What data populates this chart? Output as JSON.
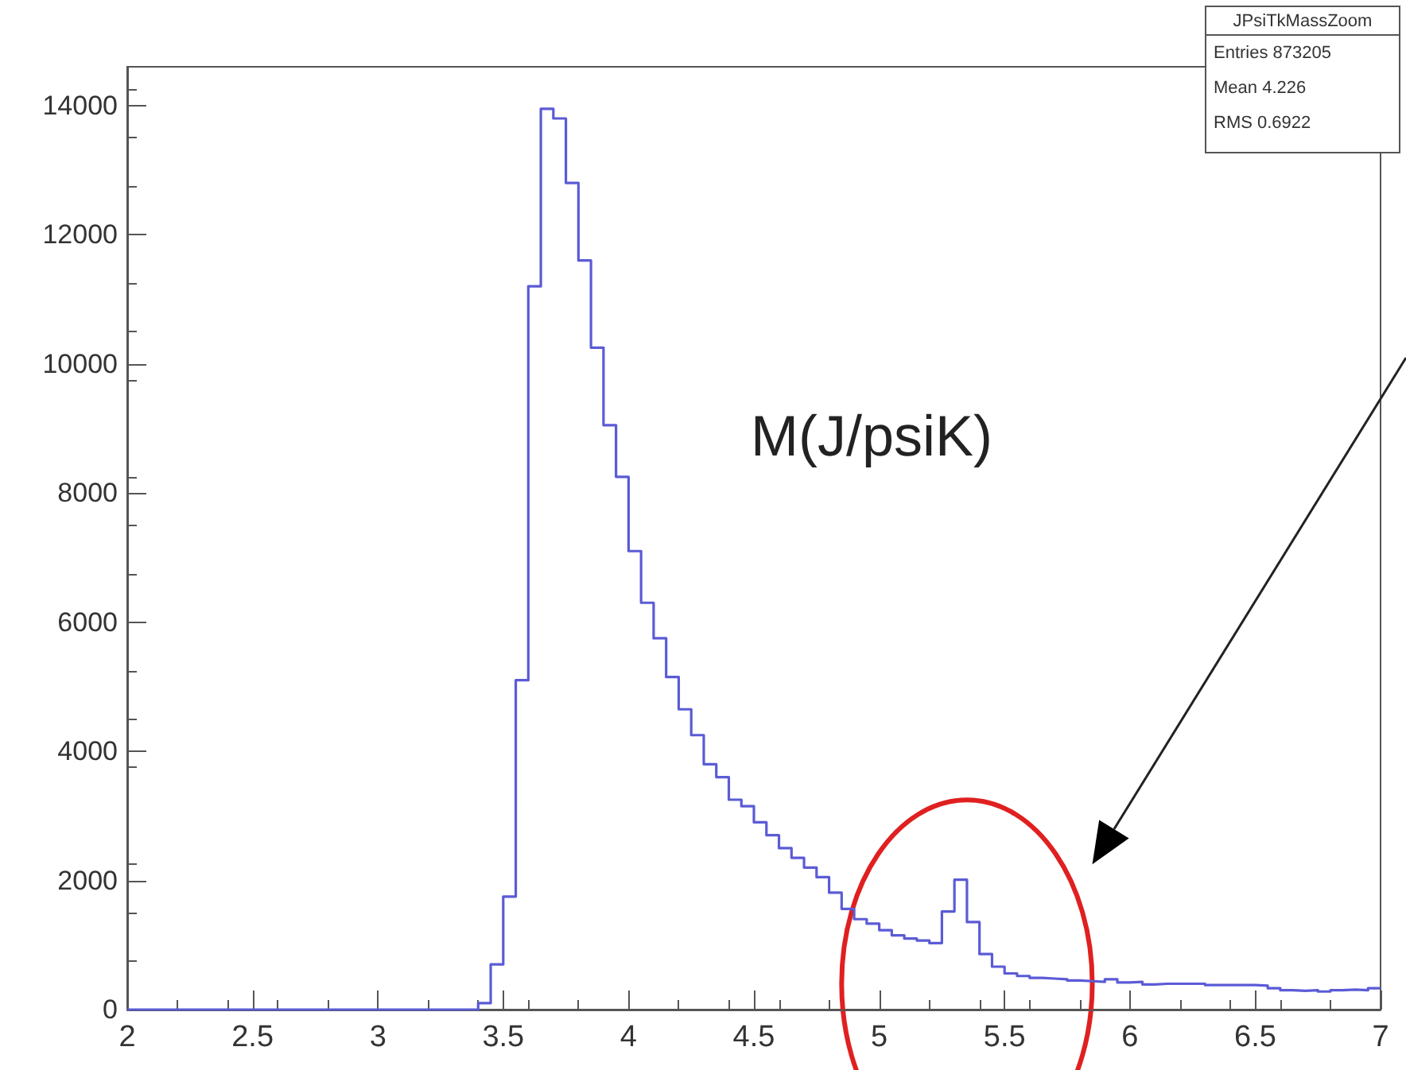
{
  "chart_data": {
    "type": "histogram",
    "bins": [
      2,
      2.05,
      2.1,
      2.15,
      2.2,
      2.25,
      2.3,
      2.35,
      2.4,
      2.45,
      2.5,
      2.55,
      2.6,
      2.65,
      2.7,
      2.75,
      2.8,
      2.85,
      2.9,
      2.95,
      3,
      3.05,
      3.1,
      3.15,
      3.2,
      3.25,
      3.3,
      3.35,
      3.4,
      3.45,
      3.5,
      3.55,
      3.6,
      3.65,
      3.7,
      3.75,
      3.8,
      3.85,
      3.9,
      3.95,
      4,
      4.05,
      4.1,
      4.15,
      4.2,
      4.25,
      4.3,
      4.35,
      4.4,
      4.45,
      4.5,
      4.55,
      4.6,
      4.65,
      4.7,
      4.75,
      4.8,
      4.85,
      4.9,
      4.95,
      5,
      5.05,
      5.1,
      5.15,
      5.2,
      5.25,
      5.3,
      5.35,
      5.4,
      5.45,
      5.5,
      5.55,
      5.6,
      5.65,
      5.7,
      5.75,
      5.8,
      5.85,
      5.9,
      5.95,
      6,
      6.05,
      6.1,
      6.15,
      6.2,
      6.25,
      6.3,
      6.35,
      6.4,
      6.45,
      6.5,
      6.55,
      6.6,
      6.65,
      6.7,
      6.75,
      6.8,
      6.85,
      6.9,
      6.95,
      7
    ],
    "values": [
      0,
      0,
      0,
      0,
      0,
      0,
      0,
      0,
      0,
      0,
      0,
      0,
      0,
      0,
      0,
      0,
      0,
      0,
      0,
      0,
      0,
      0,
      0,
      0,
      0,
      0,
      0,
      0,
      100,
      700,
      1750,
      5100,
      11200,
      13950,
      13800,
      12800,
      11600,
      10250,
      9050,
      8250,
      7100,
      6300,
      5750,
      5150,
      4650,
      4250,
      3800,
      3600,
      3250,
      3150,
      2900,
      2700,
      2500,
      2350,
      2200,
      2050,
      1810,
      1560,
      1400,
      1330,
      1230,
      1150,
      1100,
      1070,
      1030,
      1520,
      2010,
      1355,
      860,
      665,
      560,
      520,
      490,
      480,
      470,
      450,
      440,
      430,
      470,
      420,
      430,
      390,
      400,
      400,
      400,
      400,
      380,
      380,
      380,
      380,
      370,
      330,
      300,
      290,
      300,
      280,
      300,
      310,
      300,
      330
    ],
    "color": "#5b5bd6",
    "xlim": [
      2,
      7
    ],
    "xticks": [
      2,
      2.5,
      3,
      3.5,
      4,
      4.5,
      5,
      5.5,
      6,
      6.5,
      7
    ],
    "ylim": [
      0,
      14600
    ],
    "yticks": [
      0,
      2000,
      4000,
      6000,
      8000,
      10000,
      12000,
      14000
    ],
    "annotations": [
      "M(J/psiK)",
      "JPsiTkMassZoom",
      "Entries 873205",
      "Mean 4.226",
      "RMS 0.6922"
    ]
  }
}
